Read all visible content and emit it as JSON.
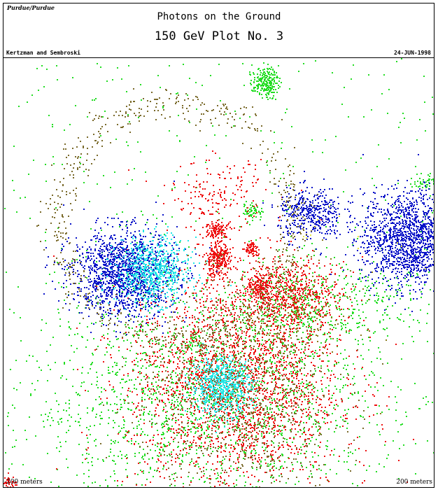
{
  "header": {
    "institution": "Purdue/Purdue",
    "title": "Photons on the Ground",
    "subtitle": "150 GeV Plot No. 3",
    "authors": "Kertzman and Sembroski",
    "date": "24-JUN-1998"
  },
  "scale": {
    "left_label": "-200 meters",
    "right_label": "200 meters"
  },
  "chart_data": {
    "type": "scatter",
    "title": "Photons on the Ground",
    "subtitle": "150 GeV Plot No. 3",
    "xlabel": "",
    "ylabel": "",
    "xlim": [
      -200,
      200
    ],
    "ylim": [
      -200,
      200
    ],
    "units": "meters",
    "grid": false,
    "legend": "none",
    "colors": {
      "green": "#22dd22",
      "red": "#ee1111",
      "blue": "#0a14c8",
      "cyan": "#22e6e6",
      "brown": "#7a6a2a",
      "olive": "#8a7a1a",
      "yellow": "#e8e840"
    },
    "clusters": [
      {
        "color": "green",
        "shape": "uniform",
        "cx": 0,
        "cy": 0,
        "r": 200,
        "n": 520
      },
      {
        "color": "green",
        "shape": "gauss",
        "cx": -50,
        "cy": -120,
        "sx": 65,
        "sy": 50,
        "n": 1100
      },
      {
        "color": "green",
        "shape": "gauss",
        "cx": 50,
        "cy": -115,
        "sx": 55,
        "sy": 45,
        "n": 650
      },
      {
        "color": "green",
        "shape": "gauss",
        "cx": 75,
        "cy": -30,
        "sx": 30,
        "sy": 20,
        "n": 400
      },
      {
        "color": "green",
        "shape": "gauss",
        "cx": 155,
        "cy": -25,
        "sx": 30,
        "sy": 20,
        "n": 140
      },
      {
        "color": "green",
        "shape": "gauss",
        "cx": 43,
        "cy": 178,
        "sx": 6,
        "sy": 7,
        "n": 220
      },
      {
        "color": "green",
        "shape": "gauss",
        "cx": 31,
        "cy": 58,
        "sx": 5,
        "sy": 4,
        "n": 60
      },
      {
        "color": "green",
        "shape": "gauss",
        "cx": 192,
        "cy": 86,
        "sx": 6,
        "sy": 4,
        "n": 50
      },
      {
        "color": "green",
        "shape": "gauss",
        "cx": -24,
        "cy": -64,
        "sx": 4,
        "sy": 5,
        "n": 35
      },
      {
        "color": "red",
        "shape": "gauss",
        "cx": 15,
        "cy": -100,
        "sx": 50,
        "sy": 55,
        "n": 2300
      },
      {
        "color": "red",
        "shape": "gauss",
        "cx": 70,
        "cy": -20,
        "sx": 22,
        "sy": 15,
        "n": 500
      },
      {
        "color": "red",
        "shape": "gauss",
        "cx": -2,
        "cy": 13,
        "sx": 6,
        "sy": 8,
        "n": 260
      },
      {
        "color": "red",
        "shape": "gauss",
        "cx": -1,
        "cy": 40,
        "sx": 6,
        "sy": 4,
        "n": 110
      },
      {
        "color": "red",
        "shape": "gauss",
        "cx": 37,
        "cy": -12,
        "sx": 5,
        "sy": 6,
        "n": 150
      },
      {
        "color": "red",
        "shape": "gauss",
        "cx": 30,
        "cy": 22,
        "sx": 3,
        "sy": 4,
        "n": 70
      },
      {
        "color": "red",
        "shape": "gauss",
        "cx": -2,
        "cy": 72,
        "sx": 22,
        "sy": 16,
        "n": 170
      },
      {
        "color": "red",
        "shape": "gauss",
        "cx": -195,
        "cy": -195,
        "sx": 3,
        "sy": 3,
        "n": 35
      },
      {
        "color": "blue",
        "shape": "gauss",
        "cx": -88,
        "cy": 0,
        "sx": 24,
        "sy": 20,
        "n": 1500
      },
      {
        "color": "blue",
        "shape": "gauss",
        "cx": 177,
        "cy": 32,
        "sx": 22,
        "sy": 22,
        "n": 1500
      },
      {
        "color": "blue",
        "shape": "gauss",
        "cx": 85,
        "cy": 55,
        "sx": 15,
        "sy": 12,
        "n": 420
      },
      {
        "color": "cyan",
        "shape": "gauss",
        "cx": -62,
        "cy": 2,
        "sx": 17,
        "sy": 15,
        "n": 700
      },
      {
        "color": "cyan",
        "shape": "gauss",
        "cx": 2,
        "cy": -105,
        "sx": 14,
        "sy": 13,
        "n": 700
      },
      {
        "color": "brown",
        "shape": "ring",
        "cx": -40,
        "cy": 48,
        "r": 110,
        "w": 8,
        "n": 650
      },
      {
        "color": "brown",
        "shape": "gauss",
        "cx": 18,
        "cy": -115,
        "sx": 45,
        "sy": 50,
        "n": 850
      },
      {
        "color": "olive",
        "shape": "gauss",
        "cx": 60,
        "cy": -40,
        "sx": 35,
        "sy": 30,
        "n": 220
      },
      {
        "color": "yellow",
        "shape": "gauss",
        "cx": 120,
        "cy": 40,
        "sx": 40,
        "sy": 30,
        "n": 15
      }
    ]
  }
}
